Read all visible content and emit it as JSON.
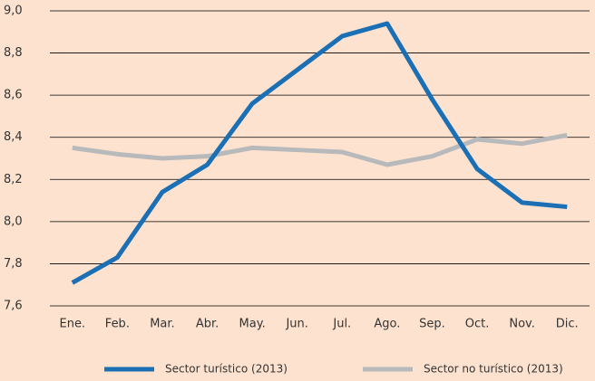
{
  "chart_data": {
    "type": "line",
    "categories": [
      "Ene.",
      "Feb.",
      "Mar.",
      "Abr.",
      "May.",
      "Jun.",
      "Jul.",
      "Ago.",
      "Sep.",
      "Oct.",
      "Nov.",
      "Dic."
    ],
    "series": [
      {
        "name": "Sector turístico (2013)",
        "color": "#1a6fb5",
        "values": [
          7.71,
          7.83,
          8.14,
          8.27,
          8.56,
          8.72,
          8.88,
          8.94,
          8.58,
          8.25,
          8.09,
          8.07
        ]
      },
      {
        "name": "Sector no turístico (2013)",
        "color": "#b7b9bb",
        "values": [
          8.35,
          8.32,
          8.3,
          8.31,
          8.35,
          8.34,
          8.33,
          8.27,
          8.31,
          8.39,
          8.37,
          8.41
        ]
      }
    ],
    "ylim": [
      7.6,
      9.0
    ],
    "yticks": [
      {
        "value": 7.6,
        "label": "7,6"
      },
      {
        "value": 7.8,
        "label": "7,8"
      },
      {
        "value": 8.0,
        "label": "8,0"
      },
      {
        "value": 8.2,
        "label": "8,2"
      },
      {
        "value": 8.4,
        "label": "8,4"
      },
      {
        "value": 8.6,
        "label": "8,6"
      },
      {
        "value": 8.8,
        "label": "8,8"
      },
      {
        "value": 9.0,
        "label": "9,0"
      }
    ],
    "grid": true
  }
}
